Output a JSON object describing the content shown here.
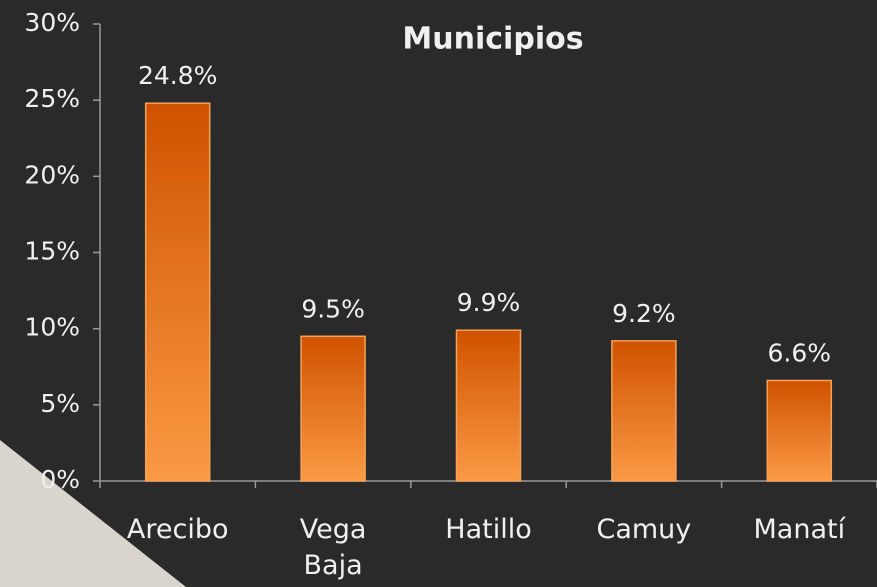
{
  "chart_data": {
    "type": "bar",
    "title": "Municipios",
    "categories": [
      "Arecibo",
      "Vega Baja",
      "Hatillo",
      "Camuy",
      "Manatí"
    ],
    "values": [
      24.8,
      9.5,
      9.9,
      9.2,
      6.6
    ],
    "value_labels": [
      "24.8%",
      "9.5%",
      "9.9%",
      "9.2%",
      "6.6%"
    ],
    "color": "#e8731e",
    "ylim": [
      0,
      30
    ],
    "yticks": [
      {
        "value": 0,
        "label": "0%"
      },
      {
        "value": 5,
        "label": "5%"
      },
      {
        "value": 10,
        "label": "10%"
      },
      {
        "value": 15,
        "label": "15%"
      },
      {
        "value": 20,
        "label": "20%"
      },
      {
        "value": 25,
        "label": "25%"
      },
      {
        "value": 30,
        "label": "30%"
      }
    ]
  }
}
